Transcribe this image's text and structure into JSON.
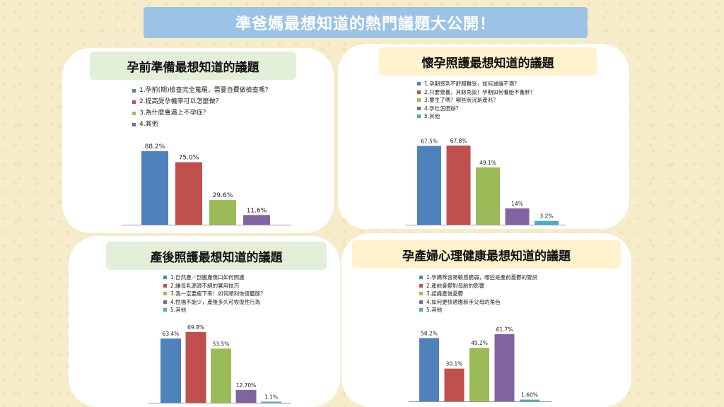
{
  "banner_title": "準爸媽最想知道的熱門議題大公開！",
  "colors": [
    "#4f81bd",
    "#c0504d",
    "#9bbb59",
    "#8064a2",
    "#4bacc6"
  ],
  "chart_data": [
    {
      "type": "bar",
      "title": "孕前準備最想知道的議題",
      "legend": [
        "1.孕前(期)檢查完全蒐羅，需要自費做檢查嗎？",
        "2.提高受孕機率可以怎麼做？",
        "3.為什麼會遇上不孕症？",
        "4.其他"
      ],
      "values": [
        88.2,
        75.0,
        29.6,
        11.6
      ],
      "labels": [
        "88.2%",
        "75.0%",
        "29.6%",
        "11.6%"
      ]
    },
    {
      "type": "bar",
      "title": "懷孕照護最想知道的議題",
      "legend": [
        "1.孕期感到不舒服難受，如何減緩不適？",
        "2.只要營養，其餘免談！孕期如何養胎不養胖？",
        "3.要生了嗎？哪些狀況是產兆？",
        "4.孕吐怎麼辦？",
        "5.其他"
      ],
      "values": [
        67.5,
        67.8,
        49.1,
        14,
        3.2
      ],
      "labels": [
        "67.5%",
        "67.8%",
        "49.1%",
        "14%",
        "3.2%"
      ]
    },
    {
      "type": "bar",
      "title": "產後照護最想知道的議題",
      "legend": [
        "1.自然產／剖腹產傷口如何照護",
        "2.讓母乳源源不絕的實用技巧",
        "3.我一定要瘦下來！如何順利恢復體態？",
        "4.性福不能少，產後多久可恢復性行為",
        "5.其他"
      ],
      "values": [
        63.4,
        69.8,
        53.5,
        12.7,
        1.1
      ],
      "labels": [
        "63.4%",
        "69.8%",
        "53.5%",
        "12.70%",
        "1.1%"
      ]
    },
    {
      "type": "bar",
      "title": "孕產婦心理健康最想知道的議題",
      "legend": [
        "1.孕媽咪容易敏感脆弱，哪些是產前憂鬱的警訊",
        "2.產前憂鬱對母胎的影響",
        "3.認識產後憂鬱",
        "4.如何更快適應新手父母的角色",
        "5.其他"
      ],
      "values": [
        58.2,
        30.1,
        49.2,
        61.7,
        1.6
      ],
      "labels": [
        "58.2%",
        "30.1%",
        "49.2%",
        "61.7%",
        "1.60%"
      ]
    }
  ]
}
